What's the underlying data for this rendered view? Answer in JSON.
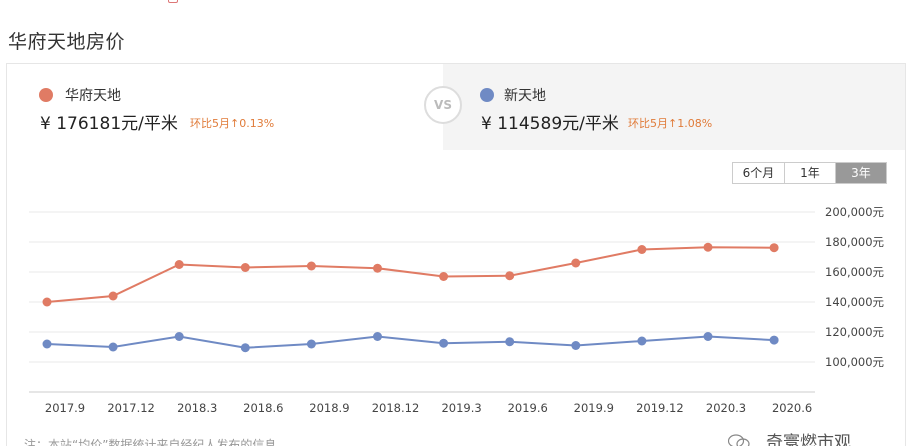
{
  "page_title": "华府天地房价",
  "top_cut": {
    "text": "",
    "date": ""
  },
  "compare": {
    "vs_label": "VS",
    "left": {
      "name": "华府天地",
      "currency": "¥",
      "price": "176181元/平米",
      "change": "环比5月↑0.13%",
      "color": "#e07b64"
    },
    "right": {
      "name": "新天地",
      "currency": "¥",
      "price": "114589元/平米",
      "change": "环比5月↑1.08%",
      "color": "#6f8ac4"
    }
  },
  "range_tabs": [
    "6个月",
    "1年",
    "3年"
  ],
  "range_selected": "3年",
  "chart_data": {
    "type": "line",
    "categories": [
      "2017.9",
      "2017.12",
      "2018.3",
      "2018.6",
      "2018.9",
      "2018.12",
      "2019.3",
      "2019.6",
      "2019.9",
      "2019.12",
      "2020.3",
      "2020.6"
    ],
    "series": [
      {
        "name": "华府天地",
        "color": "#e07b64",
        "values": [
          140000,
          144000,
          165000,
          163000,
          164000,
          162500,
          157000,
          157500,
          166000,
          175000,
          176500,
          176181
        ]
      },
      {
        "name": "新天地",
        "color": "#6f8ac4",
        "values": [
          112000,
          110000,
          117000,
          109500,
          112000,
          117000,
          112500,
          113500,
          111000,
          114000,
          117000,
          114589
        ]
      }
    ],
    "y_ticks": [
      "200,000元",
      "180,000元",
      "160,000元",
      "140,000元",
      "120,000元",
      "100,000元"
    ],
    "ylim": [
      80000,
      200000
    ],
    "grid": true
  },
  "footnote": "注：本站“均价”数据统计来自经纪人发布的信息",
  "watermark": "奇寰燃市观"
}
